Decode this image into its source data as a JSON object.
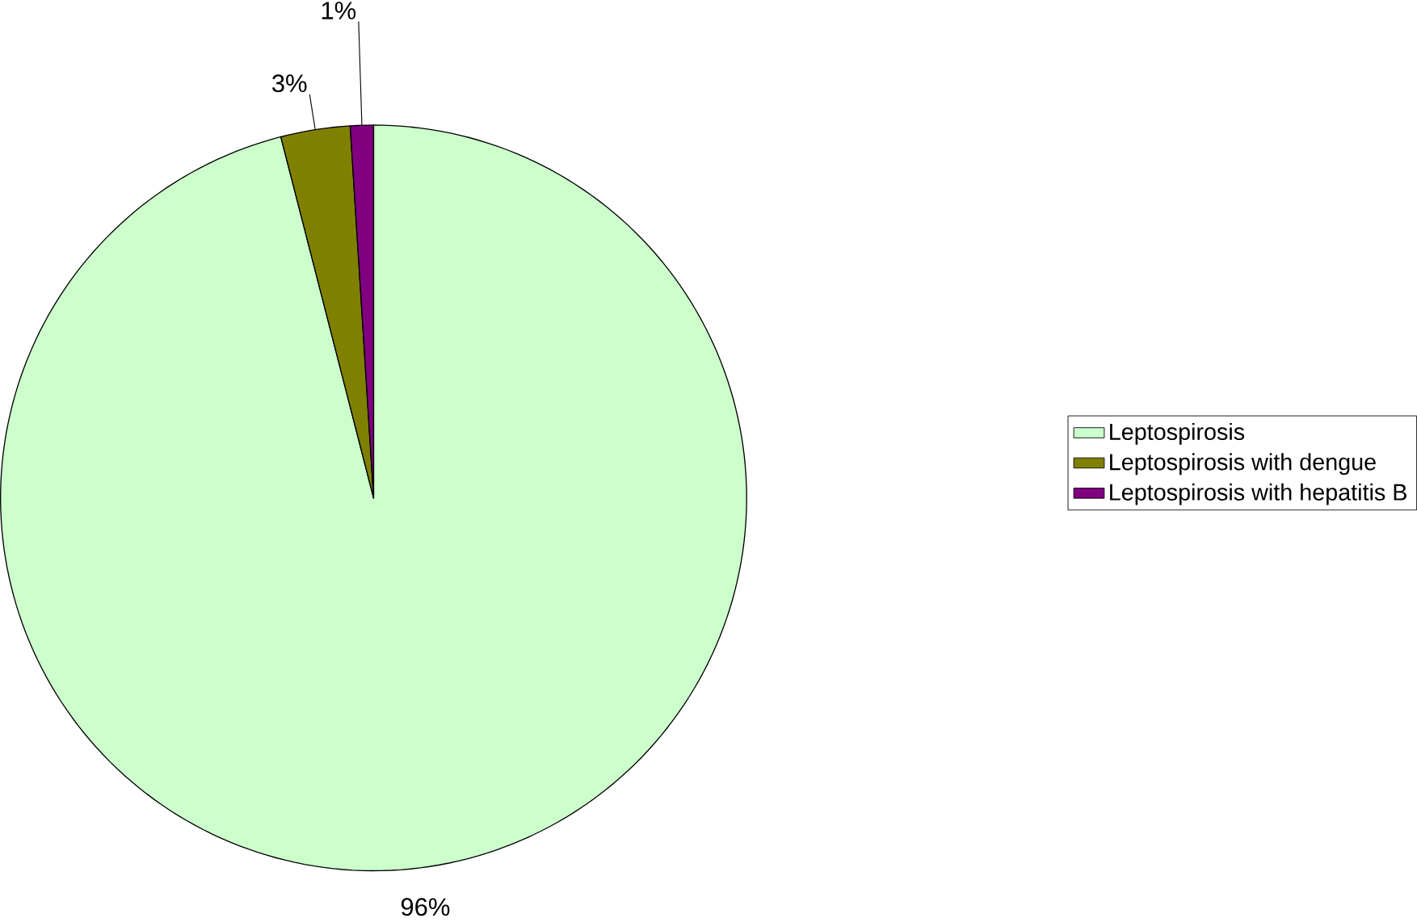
{
  "chart_data": {
    "type": "pie",
    "categories": [
      "Leptospirosis",
      "Leptospirosis with dengue",
      "Leptospirosis with hepatitis B"
    ],
    "values": [
      96,
      3,
      1
    ],
    "colors": [
      "#ccffcc",
      "#808000",
      "#800080"
    ],
    "value_labels": [
      "96%",
      "3%",
      "1%"
    ],
    "legend": "right"
  }
}
